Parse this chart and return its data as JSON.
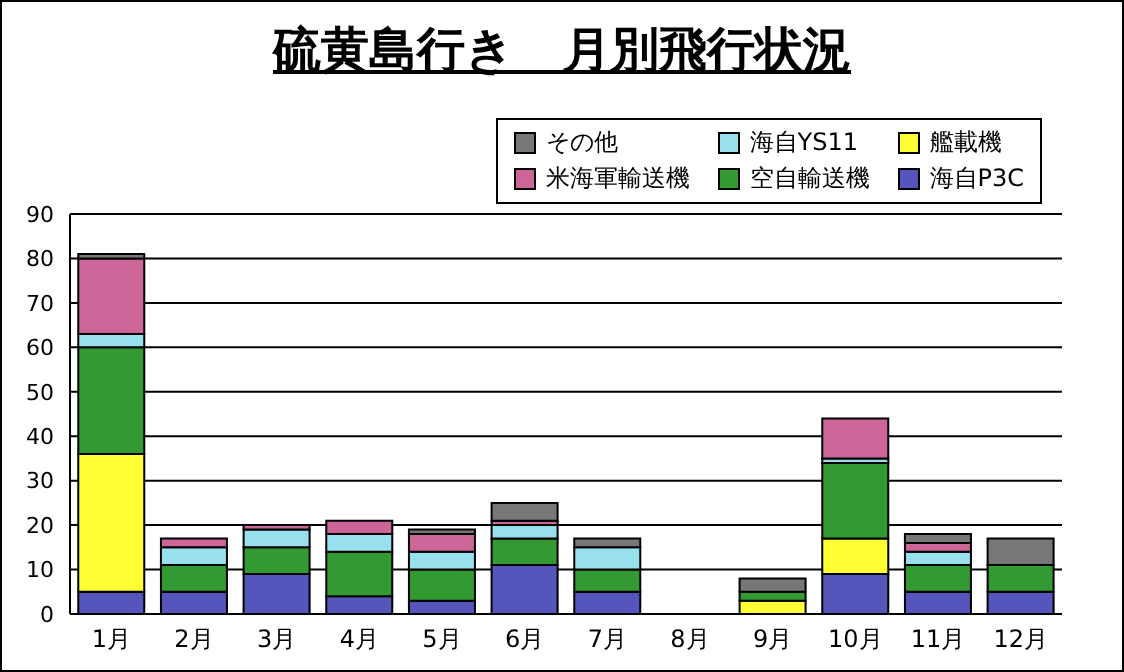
{
  "chart_data": {
    "type": "bar",
    "title": "硫黄島行き　月別飛行状況",
    "stacked": true,
    "categories": [
      "1月",
      "2月",
      "3月",
      "4月",
      "5月",
      "6月",
      "7月",
      "8月",
      "9月",
      "10月",
      "11月",
      "12月"
    ],
    "series": [
      {
        "name": "海自P3C",
        "color": "#5555bb",
        "values": [
          5,
          5,
          9,
          4,
          3,
          11,
          5,
          0,
          0,
          9,
          5,
          5
        ]
      },
      {
        "name": "艦載機",
        "color": "#ffff33",
        "values": [
          31,
          0,
          0,
          0,
          0,
          0,
          0,
          0,
          3,
          8,
          0,
          0
        ]
      },
      {
        "name": "空自輸送機",
        "color": "#339933",
        "values": [
          24,
          6,
          6,
          10,
          7,
          6,
          5,
          0,
          2,
          17,
          6,
          6
        ]
      },
      {
        "name": "海自YS11",
        "color": "#99e0ee",
        "values": [
          3,
          4,
          4,
          4,
          4,
          3,
          5,
          0,
          0,
          1,
          3,
          0
        ]
      },
      {
        "name": "米海軍輸送機",
        "color": "#cc6699",
        "values": [
          17,
          2,
          1,
          3,
          4,
          1,
          0,
          0,
          0,
          9,
          2,
          0
        ]
      },
      {
        "name": "その他",
        "color": "#777777",
        "values": [
          1,
          0,
          0,
          0,
          1,
          4,
          2,
          0,
          3,
          0,
          2,
          6
        ]
      }
    ],
    "ylim": [
      0,
      90
    ],
    "yticks": [
      0,
      10,
      20,
      30,
      40,
      50,
      60,
      70,
      80,
      90
    ],
    "grid": "y",
    "legend": "top right"
  }
}
